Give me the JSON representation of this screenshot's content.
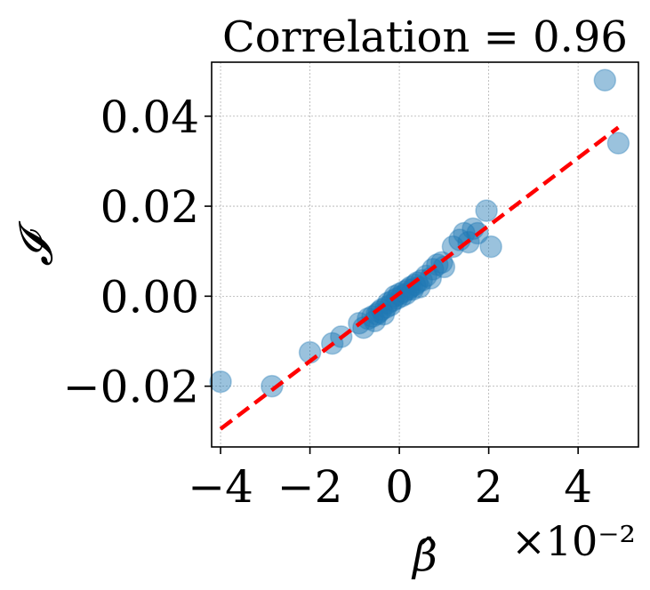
{
  "chart_data": {
    "type": "scatter",
    "title": "Correlation = 0.96",
    "xlabel": "β̂",
    "ylabel": "𝓘",
    "x_scale_label": "×10⁻²",
    "xlim": [
      -4.2,
      5.35
    ],
    "ylim": [
      -0.0335,
      0.052
    ],
    "x_ticks": [
      -4,
      -2,
      0,
      2,
      4
    ],
    "x_tick_labels": [
      "−4",
      "−2",
      "0",
      "2",
      "4"
    ],
    "y_ticks": [
      -0.02,
      0.0,
      0.02,
      0.04
    ],
    "y_tick_labels": [
      "−0.02",
      "0.00",
      "0.02",
      "0.04"
    ],
    "grid": true,
    "point_color": "#1f77b4",
    "line_color": "#ff0000",
    "fit_line": {
      "x": [
        -4.0,
        4.9
      ],
      "y": [
        -0.0295,
        0.0375
      ]
    },
    "points": [
      {
        "x": -4.0,
        "y": -0.019
      },
      {
        "x": -2.85,
        "y": -0.02
      },
      {
        "x": -2.0,
        "y": -0.0125
      },
      {
        "x": -1.5,
        "y": -0.0105
      },
      {
        "x": -1.3,
        "y": -0.009
      },
      {
        "x": -0.9,
        "y": -0.006
      },
      {
        "x": -0.8,
        "y": -0.007
      },
      {
        "x": -0.7,
        "y": -0.005
      },
      {
        "x": -0.6,
        "y": -0.0045
      },
      {
        "x": -0.55,
        "y": -0.0055
      },
      {
        "x": -0.5,
        "y": -0.004
      },
      {
        "x": -0.45,
        "y": -0.0035
      },
      {
        "x": -0.4,
        "y": -0.003
      },
      {
        "x": -0.35,
        "y": -0.004
      },
      {
        "x": -0.3,
        "y": -0.0025
      },
      {
        "x": -0.25,
        "y": -0.0015
      },
      {
        "x": -0.2,
        "y": -0.002
      },
      {
        "x": -0.15,
        "y": -0.001
      },
      {
        "x": -0.1,
        "y": 0.0
      },
      {
        "x": -0.05,
        "y": -0.0005
      },
      {
        "x": 0.0,
        "y": 0.0005
      },
      {
        "x": 0.05,
        "y": 0.0
      },
      {
        "x": 0.1,
        "y": 0.001
      },
      {
        "x": 0.15,
        "y": 0.0005
      },
      {
        "x": 0.2,
        "y": 0.0015
      },
      {
        "x": 0.25,
        "y": 0.002
      },
      {
        "x": 0.3,
        "y": 0.0015
      },
      {
        "x": 0.35,
        "y": 0.0025
      },
      {
        "x": 0.4,
        "y": 0.003
      },
      {
        "x": 0.45,
        "y": 0.002
      },
      {
        "x": 0.5,
        "y": 0.0035
      },
      {
        "x": 0.6,
        "y": 0.0045
      },
      {
        "x": 0.7,
        "y": 0.004
      },
      {
        "x": 0.75,
        "y": 0.006
      },
      {
        "x": 0.85,
        "y": 0.007
      },
      {
        "x": 0.95,
        "y": 0.0075
      },
      {
        "x": 1.0,
        "y": 0.0065
      },
      {
        "x": 1.2,
        "y": 0.011
      },
      {
        "x": 1.35,
        "y": 0.0125
      },
      {
        "x": 1.45,
        "y": 0.014
      },
      {
        "x": 1.55,
        "y": 0.012
      },
      {
        "x": 1.65,
        "y": 0.015
      },
      {
        "x": 1.75,
        "y": 0.014
      },
      {
        "x": 1.95,
        "y": 0.019
      },
      {
        "x": 2.05,
        "y": 0.011
      },
      {
        "x": 4.6,
        "y": 0.048
      },
      {
        "x": 4.9,
        "y": 0.034
      }
    ]
  }
}
